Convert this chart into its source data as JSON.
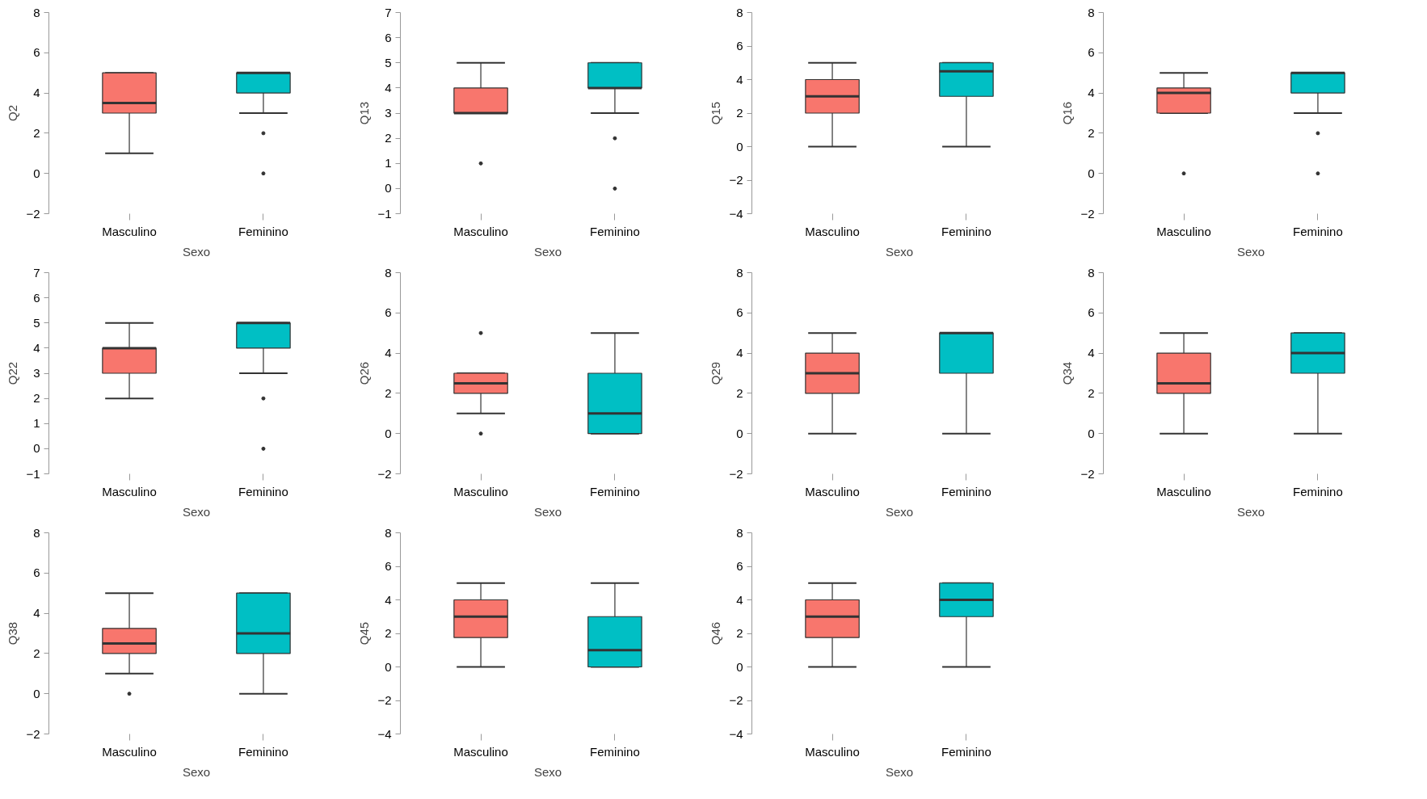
{
  "chart_data": [
    {
      "type": "box",
      "xlabel": "Sexo",
      "ylabel": "Q2",
      "categories": [
        "Masculino",
        "Feminino"
      ],
      "colors": [
        "#f8766d",
        "#00bfc4"
      ],
      "ylim": [
        -2,
        8
      ],
      "yticks": [
        -2,
        0,
        2,
        4,
        6,
        8
      ],
      "boxes": [
        {
          "low": 1,
          "q1": 3,
          "median": 3.5,
          "q3": 5,
          "high": 5
        },
        {
          "low": 3,
          "q1": 4,
          "median": 5,
          "q3": 5,
          "high": 5,
          "outliers": [
            2,
            0
          ]
        }
      ]
    },
    {
      "type": "box",
      "xlabel": "Sexo",
      "ylabel": "Q13",
      "categories": [
        "Masculino",
        "Feminino"
      ],
      "colors": [
        "#f8766d",
        "#00bfc4"
      ],
      "ylim": [
        -1,
        7
      ],
      "yticks": [
        -1,
        0,
        1,
        2,
        3,
        4,
        5,
        6,
        7
      ],
      "boxes": [
        {
          "low": 3,
          "q1": 3,
          "median": 3,
          "q3": 4,
          "high": 5,
          "outliers": [
            1
          ]
        },
        {
          "low": 3,
          "q1": 4,
          "median": 4,
          "q3": 5,
          "high": 5,
          "outliers": [
            2,
            0
          ]
        }
      ]
    },
    {
      "type": "box",
      "xlabel": "Sexo",
      "ylabel": "Q15",
      "categories": [
        "Masculino",
        "Feminino"
      ],
      "colors": [
        "#f8766d",
        "#00bfc4"
      ],
      "ylim": [
        -4,
        8
      ],
      "yticks": [
        -4,
        -2,
        0,
        2,
        4,
        6,
        8
      ],
      "boxes": [
        {
          "low": 0,
          "q1": 2,
          "median": 3,
          "q3": 4,
          "high": 5
        },
        {
          "low": 0,
          "q1": 3,
          "median": 4.5,
          "q3": 5,
          "high": 5
        }
      ]
    },
    {
      "type": "box",
      "xlabel": "Sexo",
      "ylabel": "Q16",
      "categories": [
        "Masculino",
        "Feminino"
      ],
      "colors": [
        "#f8766d",
        "#00bfc4"
      ],
      "ylim": [
        -2,
        8
      ],
      "yticks": [
        -2,
        0,
        2,
        4,
        6,
        8
      ],
      "boxes": [
        {
          "low": 3,
          "q1": 3,
          "median": 4,
          "q3": 4.25,
          "high": 5,
          "outliers": [
            0
          ]
        },
        {
          "low": 3,
          "q1": 4,
          "median": 5,
          "q3": 5,
          "high": 5,
          "outliers": [
            2,
            0
          ]
        }
      ]
    },
    {
      "type": "box",
      "xlabel": "Sexo",
      "ylabel": "Q22",
      "categories": [
        "Masculino",
        "Feminino"
      ],
      "colors": [
        "#f8766d",
        "#00bfc4"
      ],
      "ylim": [
        -1,
        7
      ],
      "yticks": [
        -1,
        0,
        1,
        2,
        3,
        4,
        5,
        6,
        7
      ],
      "boxes": [
        {
          "low": 2,
          "q1": 3,
          "median": 4,
          "q3": 4,
          "high": 5
        },
        {
          "low": 3,
          "q1": 4,
          "median": 5,
          "q3": 5,
          "high": 5,
          "outliers": [
            2,
            0
          ]
        }
      ]
    },
    {
      "type": "box",
      "xlabel": "Sexo",
      "ylabel": "Q26",
      "categories": [
        "Masculino",
        "Feminino"
      ],
      "colors": [
        "#f8766d",
        "#00bfc4"
      ],
      "ylim": [
        -2,
        8
      ],
      "yticks": [
        -2,
        0,
        2,
        4,
        6,
        8
      ],
      "boxes": [
        {
          "low": 1,
          "q1": 2,
          "median": 2.5,
          "q3": 3,
          "high": 3,
          "outliers": [
            5,
            0
          ]
        },
        {
          "low": 0,
          "q1": 0,
          "median": 1,
          "q3": 3,
          "high": 5
        }
      ]
    },
    {
      "type": "box",
      "xlabel": "Sexo",
      "ylabel": "Q29",
      "categories": [
        "Masculino",
        "Feminino"
      ],
      "colors": [
        "#f8766d",
        "#00bfc4"
      ],
      "ylim": [
        -2,
        8
      ],
      "yticks": [
        -2,
        0,
        2,
        4,
        6,
        8
      ],
      "boxes": [
        {
          "low": 0,
          "q1": 2,
          "median": 3,
          "q3": 4,
          "high": 5
        },
        {
          "low": 0,
          "q1": 3,
          "median": 5,
          "q3": 5,
          "high": 5
        }
      ]
    },
    {
      "type": "box",
      "xlabel": "Sexo",
      "ylabel": "Q34",
      "categories": [
        "Masculino",
        "Feminino"
      ],
      "colors": [
        "#f8766d",
        "#00bfc4"
      ],
      "ylim": [
        -2,
        8
      ],
      "yticks": [
        -2,
        0,
        2,
        4,
        6,
        8
      ],
      "boxes": [
        {
          "low": 0,
          "q1": 2,
          "median": 2.5,
          "q3": 4,
          "high": 5
        },
        {
          "low": 0,
          "q1": 3,
          "median": 4,
          "q3": 5,
          "high": 5
        }
      ]
    },
    {
      "type": "box",
      "xlabel": "Sexo",
      "ylabel": "Q38",
      "categories": [
        "Masculino",
        "Feminino"
      ],
      "colors": [
        "#f8766d",
        "#00bfc4"
      ],
      "ylim": [
        -2,
        8
      ],
      "yticks": [
        -2,
        0,
        2,
        4,
        6,
        8
      ],
      "boxes": [
        {
          "low": 1,
          "q1": 2,
          "median": 2.5,
          "q3": 3.25,
          "high": 5,
          "outliers": [
            0
          ]
        },
        {
          "low": 0,
          "q1": 2,
          "median": 3,
          "q3": 5,
          "high": 5
        }
      ]
    },
    {
      "type": "box",
      "xlabel": "Sexo",
      "ylabel": "Q45",
      "categories": [
        "Masculino",
        "Feminino"
      ],
      "colors": [
        "#f8766d",
        "#00bfc4"
      ],
      "ylim": [
        -4,
        8
      ],
      "yticks": [
        -4,
        -2,
        0,
        2,
        4,
        6,
        8
      ],
      "boxes": [
        {
          "low": 0,
          "q1": 1.75,
          "median": 3,
          "q3": 4,
          "high": 5
        },
        {
          "low": 0,
          "q1": 0,
          "median": 1,
          "q3": 3,
          "high": 5
        }
      ]
    },
    {
      "type": "box",
      "xlabel": "Sexo",
      "ylabel": "Q46",
      "categories": [
        "Masculino",
        "Feminino"
      ],
      "colors": [
        "#f8766d",
        "#00bfc4"
      ],
      "ylim": [
        -4,
        8
      ],
      "yticks": [
        -4,
        -2,
        0,
        2,
        4,
        6,
        8
      ],
      "boxes": [
        {
          "low": 0,
          "q1": 1.75,
          "median": 3,
          "q3": 4,
          "high": 5
        },
        {
          "low": 0,
          "q1": 3,
          "median": 4,
          "q3": 5,
          "high": 5
        }
      ]
    }
  ]
}
